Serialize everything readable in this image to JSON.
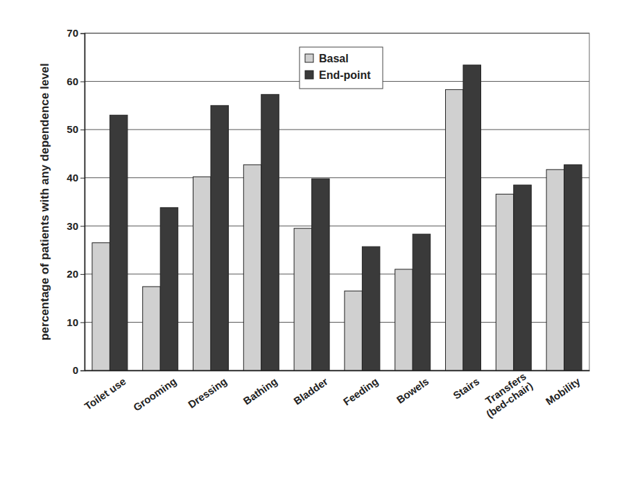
{
  "chart_data": {
    "type": "bar",
    "y_label": "percentage of patients with any dependence level",
    "categories": [
      "Toilet use",
      "Grooming",
      "Dressing",
      "Bathing",
      "Bladder",
      "Feeding",
      "Bowels",
      "Stairs",
      "Transfers (bed-chair)",
      "Mobility"
    ],
    "series": [
      {
        "name": "Basal",
        "color": "#d0d0d0",
        "values": [
          26.5,
          17.4,
          40.2,
          42.7,
          29.5,
          16.5,
          21,
          58.3,
          36.6,
          41.7
        ]
      },
      {
        "name": "End-point",
        "color": "#3a3a3a",
        "values": [
          53,
          33.8,
          55,
          57.3,
          39.8,
          25.7,
          28.3,
          63.4,
          38.5,
          42.7
        ]
      }
    ],
    "ylim": [
      0,
      70
    ],
    "yticks": [
      0,
      10,
      20,
      30,
      40,
      50,
      60,
      70
    ],
    "grid": true,
    "legend": "top"
  }
}
